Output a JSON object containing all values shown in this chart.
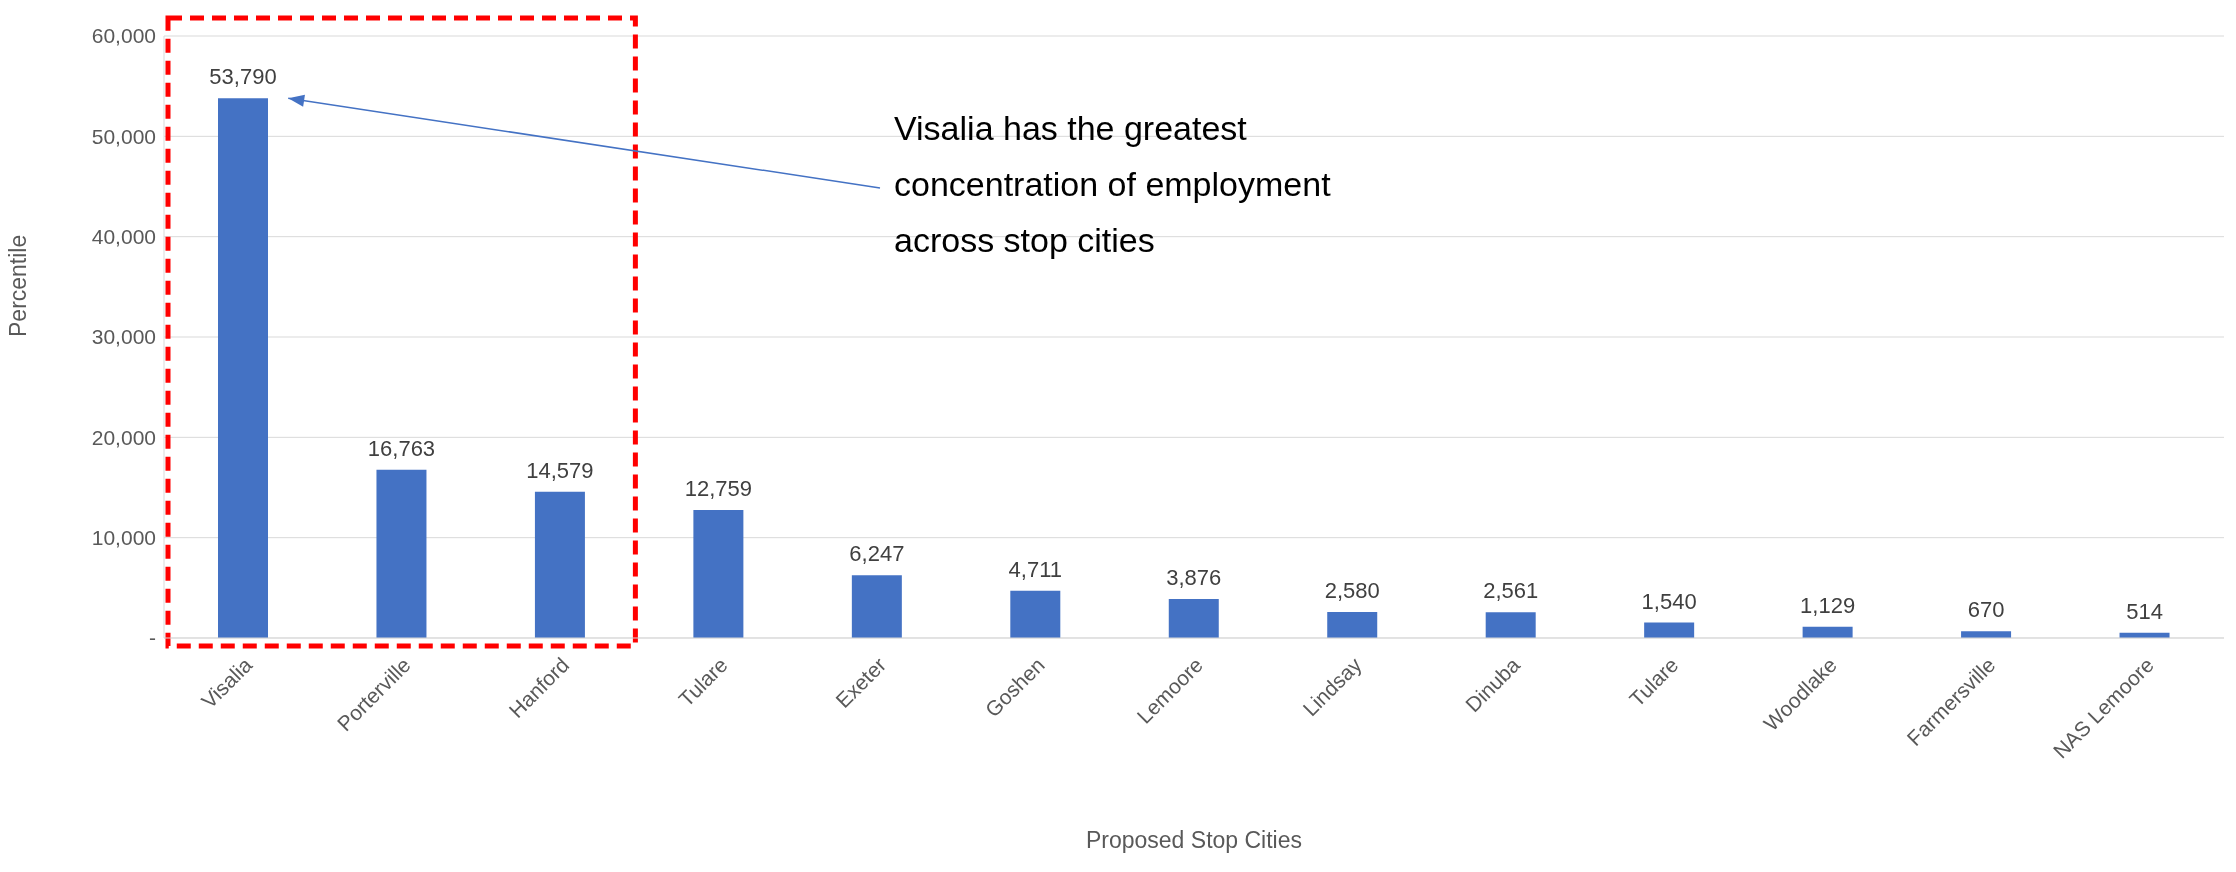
{
  "chart_data": {
    "type": "bar",
    "xlabel": "Proposed Stop Cities",
    "ylabel": "Percentile",
    "categories": [
      "Visalia",
      "Porterville",
      "Hanford",
      "Tulare",
      "Exeter",
      "Goshen",
      "Lemoore",
      "Lindsay",
      "Dinuba",
      "Tulare",
      "Woodlake",
      "Farmersville",
      "NAS Lemoore"
    ],
    "values": [
      53790,
      16763,
      14579,
      12759,
      6247,
      4711,
      3876,
      2580,
      2561,
      1540,
      1129,
      670,
      514
    ],
    "value_labels": [
      "53,790",
      "16,763",
      "14,579",
      "12,759",
      "6,247",
      "4,711",
      "3,876",
      "2,580",
      "2,561",
      "1,540",
      "1,129",
      "670",
      "514"
    ],
    "color": "#4472c4",
    "ylim": [
      0,
      60000
    ],
    "yticks": [
      {
        "value": 0,
        "label": "-"
      },
      {
        "value": 10000,
        "label": "10,000"
      },
      {
        "value": 20000,
        "label": "20,000"
      },
      {
        "value": 30000,
        "label": "30,000"
      },
      {
        "value": 40000,
        "label": "40,000"
      },
      {
        "value": 50000,
        "label": "50,000"
      },
      {
        "value": 60000,
        "label": "60,000"
      }
    ],
    "grid": "y",
    "annotations": [
      "Visalia has the greatest concentration of employment across stop cities"
    ]
  }
}
